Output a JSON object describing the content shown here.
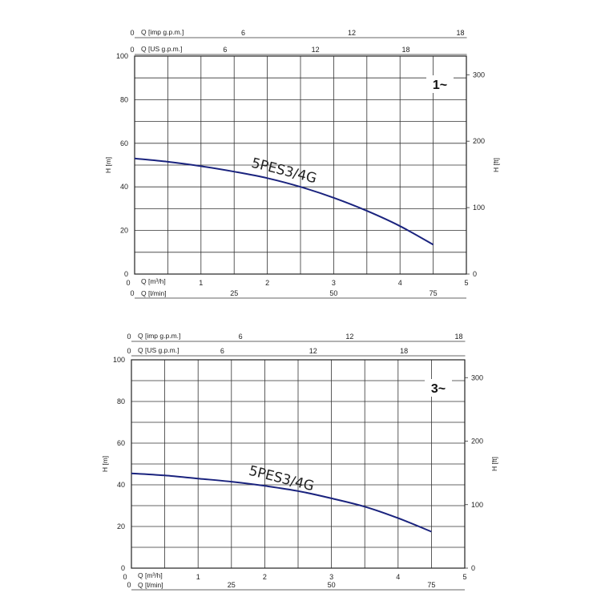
{
  "chart_data": [
    {
      "type": "line",
      "phase_label": "1~",
      "ylabel_left": "H [m]",
      "ylabel_right": "H [ft]",
      "xlabel_m3h": "Q [m³/h]",
      "xlabel_lmin": "Q [l/min]",
      "xlabel_usgpm": "Q [US g.p.m.]",
      "xlabel_impgpm": "Q [imp g.p.m.]",
      "xlim": [
        0,
        5
      ],
      "ylim": [
        0,
        100
      ],
      "x_ticks": [
        "0",
        "1",
        "2",
        "3",
        "4",
        "5"
      ],
      "y_ticks": [
        "0",
        "20",
        "40",
        "60",
        "80",
        "100"
      ],
      "ft_ticks": [
        "0",
        "100",
        "200",
        "300"
      ],
      "lmin_ticks": [
        "0",
        "25",
        "50",
        "75"
      ],
      "usgpm_ticks": [
        "0",
        "6",
        "12",
        "18"
      ],
      "impgpm_ticks": [
        "0",
        "6",
        "12",
        "18"
      ],
      "series": [
        {
          "name": "5PES3/4G",
          "color": "#1a237e",
          "x": [
            0,
            0.5,
            1,
            1.5,
            2,
            2.5,
            3,
            3.5,
            4,
            4.5
          ],
          "y": [
            53,
            51.5,
            49.5,
            47,
            44,
            40,
            35,
            29,
            22,
            13.5
          ]
        }
      ]
    },
    {
      "type": "line",
      "phase_label": "3~",
      "ylabel_left": "H [m]",
      "ylabel_right": "H [ft]",
      "xlabel_m3h": "Q [m³/h]",
      "xlabel_lmin": "Q [l/min]",
      "xlabel_usgpm": "Q [US g.p.m.]",
      "xlabel_impgpm": "Q [imp g.p.m.]",
      "xlim": [
        0,
        5
      ],
      "ylim": [
        0,
        100
      ],
      "x_ticks": [
        "0",
        "1",
        "2",
        "3",
        "4",
        "5"
      ],
      "y_ticks": [
        "0",
        "20",
        "40",
        "60",
        "80",
        "100"
      ],
      "ft_ticks": [
        "0",
        "100",
        "200",
        "300"
      ],
      "lmin_ticks": [
        "0",
        "25",
        "50",
        "75"
      ],
      "usgpm_ticks": [
        "0",
        "6",
        "12",
        "18"
      ],
      "impgpm_ticks": [
        "0",
        "6",
        "12",
        "18"
      ],
      "series": [
        {
          "name": "5PES3/4G",
          "color": "#1a237e",
          "x": [
            0,
            0.5,
            1,
            1.5,
            2,
            2.5,
            3,
            3.5,
            4,
            4.5
          ],
          "y": [
            45.5,
            44.5,
            43,
            41.5,
            39.5,
            37,
            33.5,
            29.5,
            24,
            17.5
          ]
        }
      ]
    }
  ]
}
